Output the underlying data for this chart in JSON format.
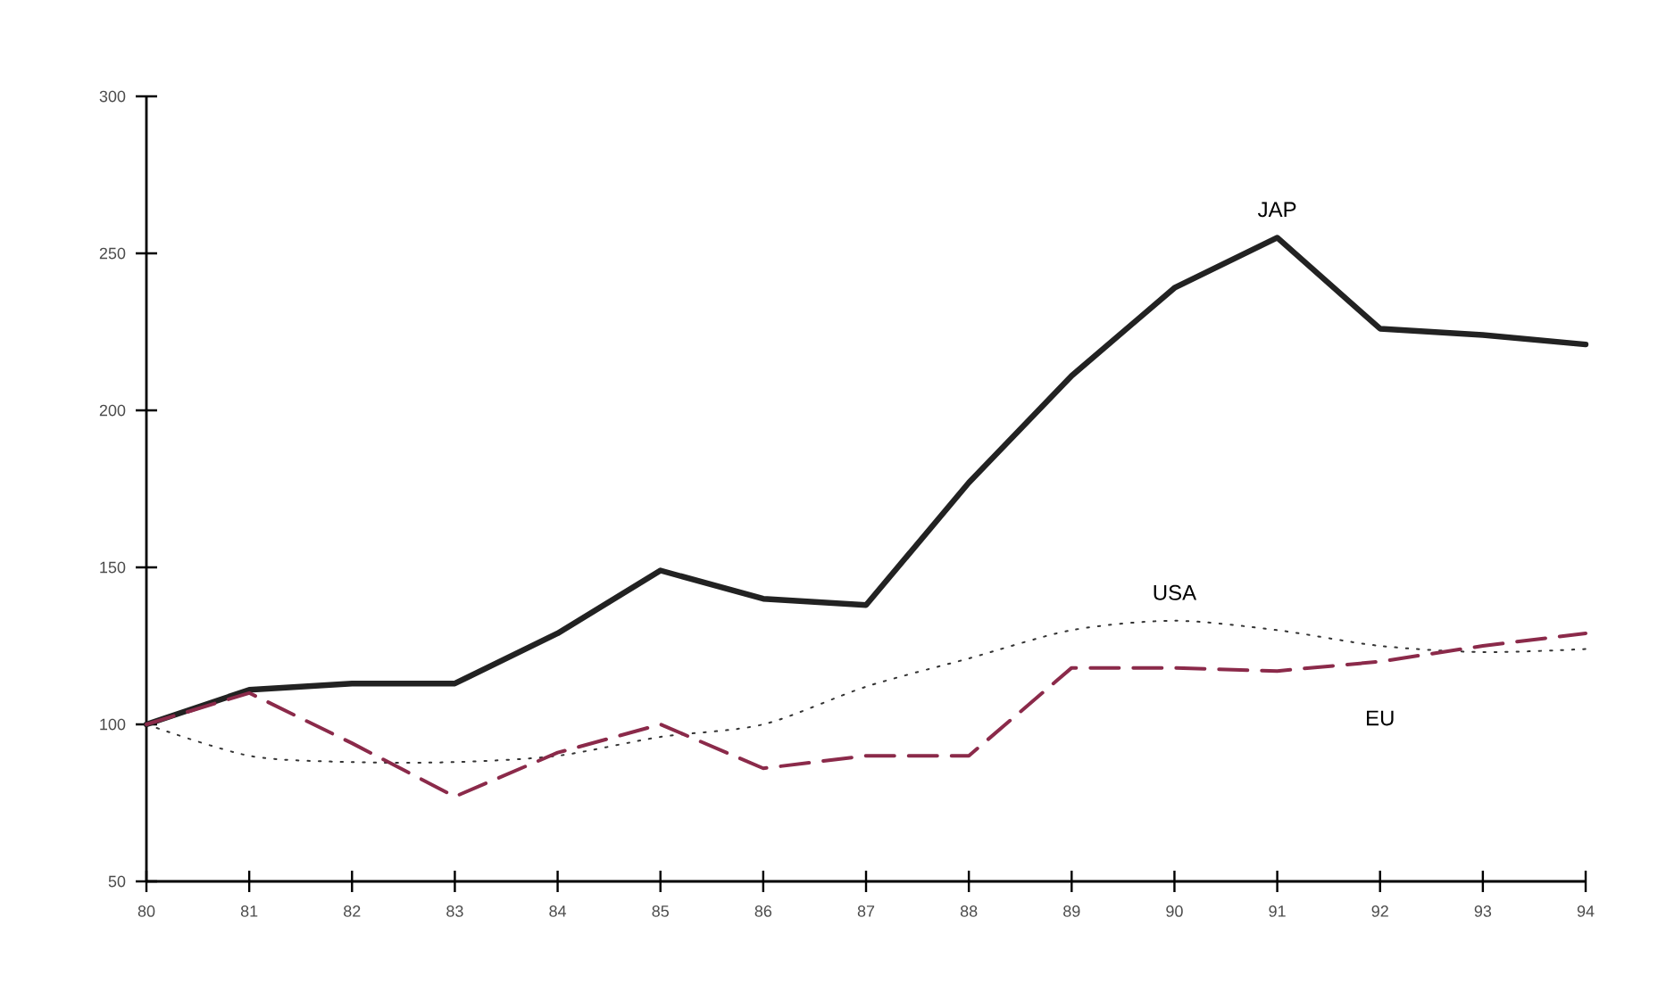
{
  "chart_data": {
    "type": "line",
    "categories": [
      "80",
      "81",
      "82",
      "83",
      "84",
      "85",
      "86",
      "87",
      "88",
      "89",
      "90",
      "91",
      "92",
      "93",
      "94"
    ],
    "series": [
      {
        "name": "JAP",
        "color": "#222222",
        "line_style": "solid",
        "values": [
          100,
          111,
          113,
          113,
          129,
          149,
          140,
          138,
          177,
          211,
          239,
          255,
          226,
          224,
          221
        ]
      },
      {
        "name": "USA",
        "color": "#333333",
        "line_style": "dotted",
        "values": [
          100,
          90,
          88,
          88,
          90,
          96,
          100,
          112,
          121,
          130,
          133,
          130,
          125,
          123,
          124
        ]
      },
      {
        "name": "EU",
        "color": "#8b2a4a",
        "line_style": "dashed",
        "values": [
          100,
          110,
          94,
          77,
          91,
          100,
          86,
          90,
          90,
          118,
          118,
          117,
          120,
          125,
          129
        ]
      }
    ],
    "ylim": [
      50,
      300
    ],
    "yticks": [
      50,
      100,
      150,
      200,
      250,
      300
    ],
    "grid": false,
    "legend": false,
    "marker": "none"
  }
}
